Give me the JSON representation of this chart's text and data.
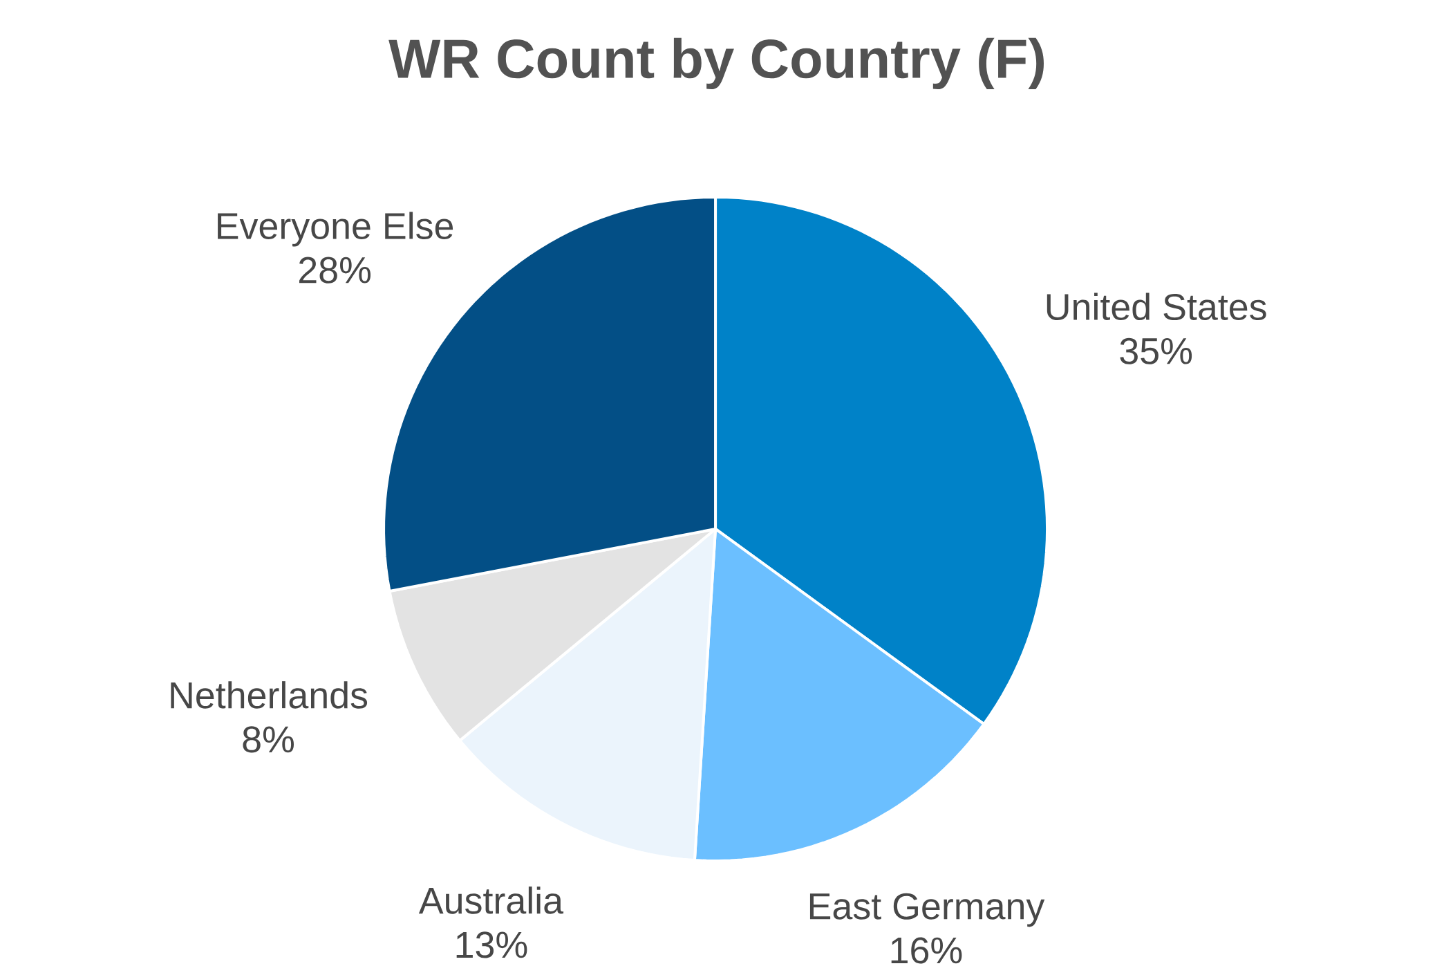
{
  "chart_data": {
    "type": "pie",
    "title": "WR Count by Country (F)",
    "categories": [
      "United States",
      "East Germany",
      "Australia",
      "Netherlands",
      "Everyone Else"
    ],
    "values": [
      35,
      16,
      13,
      8,
      28
    ],
    "value_labels": [
      "35%",
      "16%",
      "13%",
      "8%",
      "28%"
    ],
    "colors": [
      "#0082c8",
      "#6bbfff",
      "#ebf4fc",
      "#e3e3e3",
      "#034f86"
    ]
  }
}
